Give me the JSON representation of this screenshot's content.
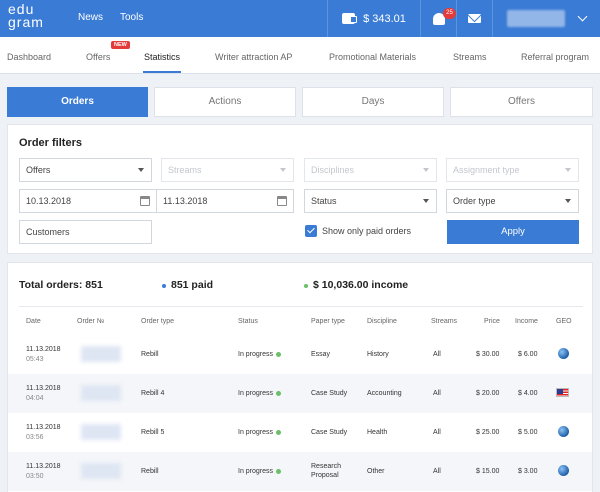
{
  "header": {
    "logo_line1": "edu",
    "logo_line2": "gram",
    "nav": [
      "News",
      "Tools"
    ],
    "balance": "$ 343.01",
    "notifications_count": "25"
  },
  "subnav": {
    "items": [
      "Dashboard",
      "Offers",
      "Statistics",
      "Writer attraction AP",
      "Promotional Materials",
      "Streams",
      "Referral program"
    ],
    "active": "Statistics",
    "new_badge": "NEW"
  },
  "tabs": [
    "Orders",
    "Actions",
    "Days",
    "Offers"
  ],
  "filters": {
    "title": "Order filters",
    "offers": "Offers",
    "streams": "Streams",
    "disciplines": "Disciplines",
    "assignment_type": "Assignment type",
    "date_from": "10.13.2018",
    "date_to": "11.13.2018",
    "status": "Status",
    "order_type": "Order type",
    "customers": "Customers",
    "paid_only_label": "Show only paid orders",
    "apply_label": "Apply"
  },
  "summary": {
    "total": "Total orders: 851",
    "paid": "851 paid",
    "income": "$ 10,036.00 income"
  },
  "colors": {
    "accent": "#3a7bd5",
    "paid_dot": "#3a7bd5",
    "income_dot": "#6abf69",
    "badge": "#e33b3b"
  },
  "table": {
    "headers": [
      "Date",
      "Order №",
      "Order type",
      "Status",
      "Paper type",
      "Discipline",
      "Streams",
      "Price",
      "Income",
      "GEO"
    ],
    "rows": [
      {
        "date": "11.13.2018",
        "time": "05:43",
        "order_type": "Rebill",
        "status": "In progress",
        "paper_type": "Essay",
        "paper_type2": "",
        "discipline": "History",
        "streams": "All",
        "price": "$ 30.00",
        "income": "$ 6.00",
        "geo": "globe-icon"
      },
      {
        "date": "11.13.2018",
        "time": "04:04",
        "order_type": "Rebill 4",
        "status": "In progress",
        "paper_type": "Case Study",
        "paper_type2": "",
        "discipline": "Accounting",
        "streams": "All",
        "price": "$ 20.00",
        "income": "$ 4.00",
        "geo": "us-flag-icon"
      },
      {
        "date": "11.13.2018",
        "time": "03:56",
        "order_type": "Rebill 5",
        "status": "In progress",
        "paper_type": "Case Study",
        "paper_type2": "",
        "discipline": "Health",
        "streams": "All",
        "price": "$ 25.00",
        "income": "$ 5.00",
        "geo": "globe-icon"
      },
      {
        "date": "11.13.2018",
        "time": "03:50",
        "order_type": "Rebill",
        "status": "In progress",
        "paper_type": "Research",
        "paper_type2": "Proposal",
        "discipline": "Other",
        "streams": "All",
        "price": "$ 15.00",
        "income": "$ 3.00",
        "geo": "globe-icon"
      }
    ]
  }
}
